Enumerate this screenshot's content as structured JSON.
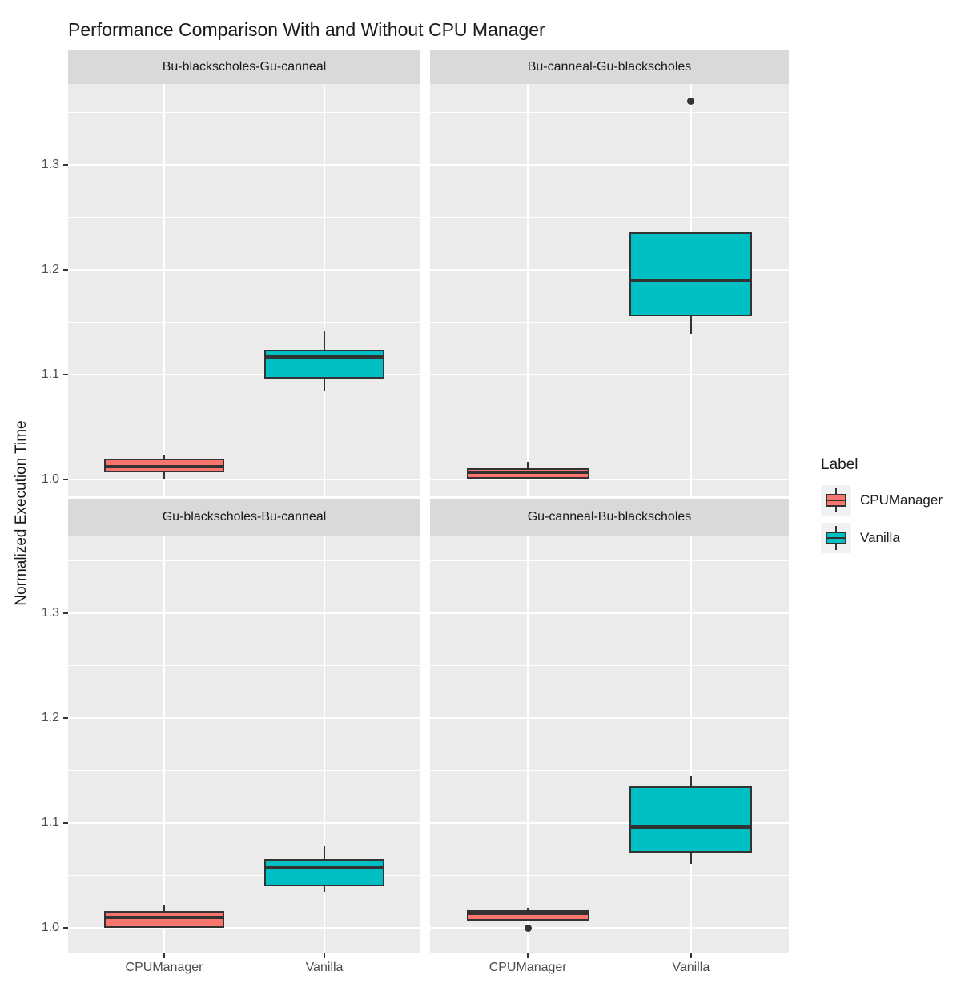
{
  "legend": {
    "title": "Label",
    "items": [
      "CPUManager",
      "Vanilla"
    ]
  },
  "colors": {
    "cpumanager_fill": "#F8766D",
    "vanilla_fill": "#00BFC4",
    "panel_background": "#EBEBEB",
    "strip_background": "#D9D9D9",
    "gridline": "#FFFFFF",
    "box_border": "#333333",
    "tick_label": "#4D4D4D",
    "legend_key_background": "#F2F2F2"
  },
  "chart_data": {
    "type": "boxplot",
    "title": "Performance Comparison With and Without CPU Manager",
    "ylabel": "Normalized Execution Time",
    "xlabel": "",
    "legend_title": "Label",
    "legend_position": "right",
    "grid": "major-and-minor-white-on-grey",
    "x_categories": [
      "CPUManager",
      "Vanilla"
    ],
    "y_major_ticks": [
      1.0,
      1.1,
      1.2,
      1.3
    ],
    "y_tick_labels": [
      "1.0",
      "1.1",
      "1.2",
      "1.3"
    ],
    "y_minor_ticks": [
      1.05,
      1.15,
      1.25,
      1.35
    ],
    "y_range_approx": [
      0.972,
      1.375
    ],
    "series": [
      {
        "name": "CPUManager",
        "color": "#F8766D"
      },
      {
        "name": "Vanilla",
        "color": "#00BFC4"
      }
    ],
    "facets": [
      {
        "label": "Bu-blackscholes-Gu-canneal",
        "boxes": [
          {
            "group": "CPUManager",
            "whisker_low": 1.0,
            "q1": 1.007,
            "median": 1.012,
            "q3": 1.02,
            "whisker_high": 1.023,
            "outliers": []
          },
          {
            "group": "Vanilla",
            "whisker_low": 1.085,
            "q1": 1.096,
            "median": 1.117,
            "q3": 1.124,
            "whisker_high": 1.141,
            "outliers": []
          }
        ]
      },
      {
        "label": "Bu-canneal-Gu-blackscholes",
        "boxes": [
          {
            "group": "CPUManager",
            "whisker_low": 1.0,
            "q1": 1.001,
            "median": 1.007,
            "q3": 1.011,
            "whisker_high": 1.017,
            "outliers": []
          },
          {
            "group": "Vanilla",
            "whisker_low": 1.139,
            "q1": 1.156,
            "median": 1.19,
            "q3": 1.236,
            "whisker_high": 1.236,
            "outliers": [
              1.361
            ]
          }
        ]
      },
      {
        "label": "Gu-blackscholes-Bu-canneal",
        "boxes": [
          {
            "group": "CPUManager",
            "whisker_low": 1.0,
            "q1": 1.0,
            "median": 1.01,
            "q3": 1.016,
            "whisker_high": 1.021,
            "outliers": []
          },
          {
            "group": "Vanilla",
            "whisker_low": 1.034,
            "q1": 1.04,
            "median": 1.057,
            "q3": 1.066,
            "whisker_high": 1.078,
            "outliers": []
          }
        ]
      },
      {
        "label": "Gu-canneal-Bu-blackscholes",
        "boxes": [
          {
            "group": "CPUManager",
            "whisker_low": 1.007,
            "q1": 1.007,
            "median": 1.014,
            "q3": 1.017,
            "whisker_high": 1.019,
            "outliers": [
              1.0
            ]
          },
          {
            "group": "Vanilla",
            "whisker_low": 1.061,
            "q1": 1.072,
            "median": 1.096,
            "q3": 1.135,
            "whisker_high": 1.144,
            "outliers": []
          }
        ]
      }
    ]
  }
}
